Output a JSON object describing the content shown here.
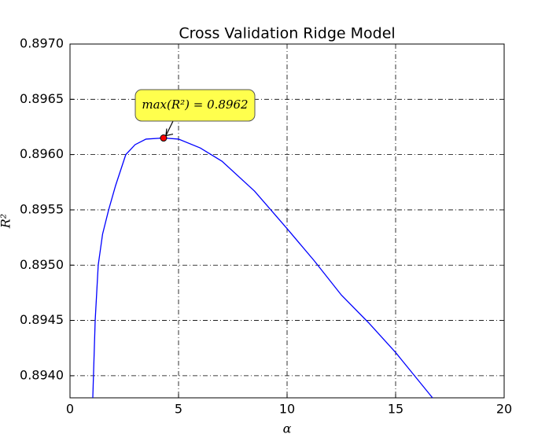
{
  "chart_data": {
    "type": "line",
    "title": "Cross Validation Ridge Model",
    "x_label": "α",
    "y_label": "R²",
    "series": [
      {
        "color": "#0000ff",
        "x": [
          1.05,
          1.16,
          1.3,
          1.5,
          1.78,
          2.1,
          2.57,
          3.0,
          3.5,
          4.31,
          5,
          6,
          7,
          8.5,
          10,
          11.25,
          12.5,
          13.75,
          15,
          16.7
        ],
        "values": [
          0.8938,
          0.8945,
          0.895,
          0.89528,
          0.8955,
          0.89572,
          0.896,
          0.89609,
          0.89614,
          0.89615,
          0.89614,
          0.89606,
          0.89594,
          0.89567,
          0.89533,
          0.89504,
          0.89473,
          0.89448,
          0.89421,
          0.8938
        ]
      }
    ],
    "annotation": {
      "text": "max(R²) = 0.8962",
      "x": 4.31,
      "y": 0.89615,
      "color": "#ff0000",
      "box_color": "#ffff4d"
    },
    "xlim": [
      0,
      20
    ],
    "xticks": [
      0,
      5,
      10,
      15,
      20
    ],
    "ylim": [
      0.8938,
      0.897
    ],
    "yticks": [
      {
        "value": 0.894,
        "label": "0.8940"
      },
      {
        "value": 0.8945,
        "label": "0.8945"
      },
      {
        "value": 0.895,
        "label": "0.8950"
      },
      {
        "value": 0.8955,
        "label": "0.8955"
      },
      {
        "value": 0.896,
        "label": "0.8960"
      },
      {
        "value": 0.8965,
        "label": "0.8965"
      },
      {
        "value": 0.897,
        "label": "0.8970"
      }
    ],
    "grid": true
  }
}
